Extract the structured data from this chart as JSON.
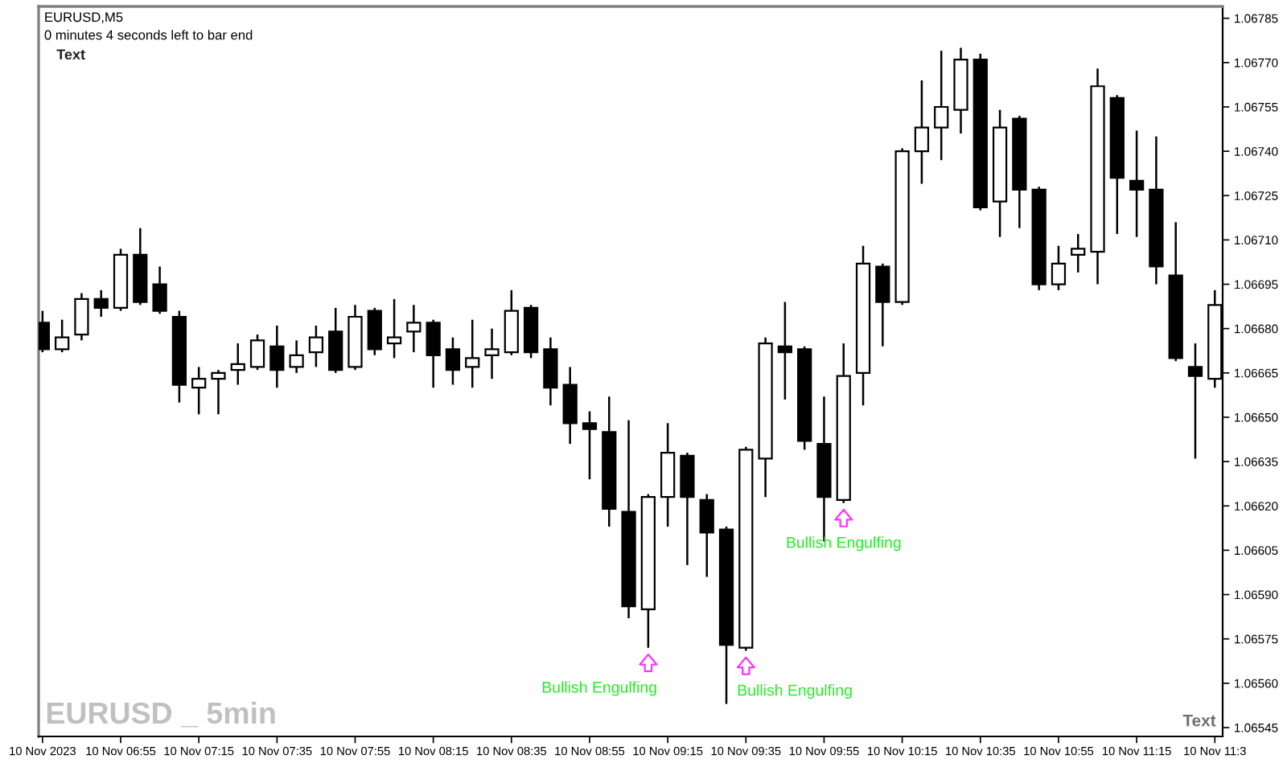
{
  "chart_data": {
    "type": "candlestick",
    "title": "EURUSD,M5",
    "subtitle": "0 minutes 4 seconds left to bar end",
    "x": [
      "2023-11-10T06:35",
      "2023-11-10T06:40",
      "2023-11-10T06:45",
      "2023-11-10T06:50",
      "2023-11-10T06:55",
      "2023-11-10T07:00",
      "2023-11-10T07:05",
      "2023-11-10T07:10",
      "2023-11-10T07:15",
      "2023-11-10T07:20",
      "2023-11-10T07:25",
      "2023-11-10T07:30",
      "2023-11-10T07:35",
      "2023-11-10T07:40",
      "2023-11-10T07:45",
      "2023-11-10T07:50",
      "2023-11-10T07:55",
      "2023-11-10T08:00",
      "2023-11-10T08:05",
      "2023-11-10T08:10",
      "2023-11-10T08:15",
      "2023-11-10T08:20",
      "2023-11-10T08:25",
      "2023-11-10T08:30",
      "2023-11-10T08:35",
      "2023-11-10T08:40",
      "2023-11-10T08:45",
      "2023-11-10T08:50",
      "2023-11-10T08:55",
      "2023-11-10T09:00",
      "2023-11-10T09:05",
      "2023-11-10T09:10",
      "2023-11-10T09:15",
      "2023-11-10T09:20",
      "2023-11-10T09:25",
      "2023-11-10T09:30",
      "2023-11-10T09:35",
      "2023-11-10T09:40",
      "2023-11-10T09:45",
      "2023-11-10T09:50",
      "2023-11-10T09:55",
      "2023-11-10T10:00",
      "2023-11-10T10:05",
      "2023-11-10T10:10",
      "2023-11-10T10:15",
      "2023-11-10T10:20",
      "2023-11-10T10:25",
      "2023-11-10T10:30",
      "2023-11-10T10:35",
      "2023-11-10T10:40",
      "2023-11-10T10:45",
      "2023-11-10T10:50",
      "2023-11-10T10:55",
      "2023-11-10T11:00",
      "2023-11-10T11:05",
      "2023-11-10T11:10",
      "2023-11-10T11:15",
      "2023-11-10T11:20",
      "2023-11-10T11:25",
      "2023-11-10T11:30",
      "2023-11-10T11:35"
    ],
    "ohlc": [
      [
        1.06682,
        1.06686,
        1.06672,
        1.06673
      ],
      [
        1.06673,
        1.06683,
        1.06672,
        1.06677
      ],
      [
        1.06678,
        1.06692,
        1.06676,
        1.0669
      ],
      [
        1.0669,
        1.06693,
        1.06684,
        1.06687
      ],
      [
        1.06687,
        1.06707,
        1.06686,
        1.06705
      ],
      [
        1.06705,
        1.06714,
        1.06688,
        1.06689
      ],
      [
        1.06695,
        1.06701,
        1.06685,
        1.06686
      ],
      [
        1.06684,
        1.06686,
        1.06655,
        1.06661
      ],
      [
        1.0666,
        1.06667,
        1.06651,
        1.06663
      ],
      [
        1.06663,
        1.06666,
        1.06651,
        1.06665
      ],
      [
        1.06666,
        1.06675,
        1.06661,
        1.06668
      ],
      [
        1.06667,
        1.06678,
        1.06666,
        1.06676
      ],
      [
        1.06674,
        1.06681,
        1.0666,
        1.06666
      ],
      [
        1.06667,
        1.06676,
        1.06665,
        1.06671
      ],
      [
        1.06672,
        1.06681,
        1.06667,
        1.06677
      ],
      [
        1.06679,
        1.06687,
        1.06665,
        1.06666
      ],
      [
        1.06667,
        1.06688,
        1.06666,
        1.06684
      ],
      [
        1.06686,
        1.06687,
        1.06671,
        1.06673
      ],
      [
        1.06675,
        1.0669,
        1.0667,
        1.06677
      ],
      [
        1.06679,
        1.06688,
        1.06672,
        1.06682
      ],
      [
        1.06682,
        1.06683,
        1.0666,
        1.06671
      ],
      [
        1.06673,
        1.06677,
        1.06661,
        1.06666
      ],
      [
        1.06667,
        1.06683,
        1.0666,
        1.0667
      ],
      [
        1.06671,
        1.0668,
        1.06663,
        1.06673
      ],
      [
        1.06672,
        1.06693,
        1.06671,
        1.06686
      ],
      [
        1.06687,
        1.06688,
        1.0667,
        1.06672
      ],
      [
        1.06673,
        1.06677,
        1.06654,
        1.0666
      ],
      [
        1.06661,
        1.06667,
        1.06641,
        1.06648
      ],
      [
        1.06648,
        1.06652,
        1.06629,
        1.06646
      ],
      [
        1.06645,
        1.06657,
        1.06613,
        1.06619
      ],
      [
        1.06618,
        1.06649,
        1.06582,
        1.06586
      ],
      [
        1.06585,
        1.06624,
        1.06572,
        1.06623
      ],
      [
        1.06623,
        1.06648,
        1.06613,
        1.06638
      ],
      [
        1.06637,
        1.06638,
        1.066,
        1.06623
      ],
      [
        1.06622,
        1.06624,
        1.06596,
        1.06611
      ],
      [
        1.06612,
        1.06613,
        1.06553,
        1.06573
      ],
      [
        1.06572,
        1.0664,
        1.06571,
        1.06639
      ],
      [
        1.06636,
        1.06677,
        1.06623,
        1.06675
      ],
      [
        1.06674,
        1.06689,
        1.06656,
        1.06672
      ],
      [
        1.06673,
        1.06674,
        1.06639,
        1.06642
      ],
      [
        1.06641,
        1.06657,
        1.06608,
        1.06623
      ],
      [
        1.06622,
        1.06675,
        1.06621,
        1.06664
      ],
      [
        1.06665,
        1.06708,
        1.06654,
        1.06702
      ],
      [
        1.06701,
        1.06702,
        1.06674,
        1.06689
      ],
      [
        1.06689,
        1.06741,
        1.06688,
        1.0674
      ],
      [
        1.0674,
        1.06764,
        1.06729,
        1.06748
      ],
      [
        1.06748,
        1.06774,
        1.06737,
        1.06755
      ],
      [
        1.06754,
        1.06775,
        1.06746,
        1.06771
      ],
      [
        1.06771,
        1.06773,
        1.0672,
        1.06721
      ],
      [
        1.06723,
        1.06754,
        1.06711,
        1.06748
      ],
      [
        1.06751,
        1.06752,
        1.06714,
        1.06727
      ],
      [
        1.06727,
        1.06728,
        1.06693,
        1.06695
      ],
      [
        1.06695,
        1.06708,
        1.06693,
        1.06702
      ],
      [
        1.06705,
        1.06712,
        1.06699,
        1.06707
      ],
      [
        1.06706,
        1.06768,
        1.06695,
        1.06762
      ],
      [
        1.06758,
        1.06759,
        1.06712,
        1.06731
      ],
      [
        1.0673,
        1.06747,
        1.06711,
        1.06727
      ],
      [
        1.06727,
        1.06745,
        1.06695,
        1.06701
      ],
      [
        1.06698,
        1.06716,
        1.06669,
        1.0667
      ],
      [
        1.06667,
        1.06675,
        1.06636,
        1.06664
      ],
      [
        1.06663,
        1.06693,
        1.0666,
        1.06688
      ]
    ],
    "xlim": [
      "2023-11-10T06:34",
      "2023-11-10T11:37"
    ],
    "xticks": [
      {
        "value": "2023-11-10T06:35",
        "label": "10 Nov 2023"
      },
      {
        "value": "2023-11-10T06:55",
        "label": "10 Nov 06:55"
      },
      {
        "value": "2023-11-10T07:15",
        "label": "10 Nov 07:15"
      },
      {
        "value": "2023-11-10T07:35",
        "label": "10 Nov 07:35"
      },
      {
        "value": "2023-11-10T07:55",
        "label": "10 Nov 07:55"
      },
      {
        "value": "2023-11-10T08:15",
        "label": "10 Nov 08:15"
      },
      {
        "value": "2023-11-10T08:35",
        "label": "10 Nov 08:35"
      },
      {
        "value": "2023-11-10T08:55",
        "label": "10 Nov 08:55"
      },
      {
        "value": "2023-11-10T09:15",
        "label": "10 Nov 09:15"
      },
      {
        "value": "2023-11-10T09:35",
        "label": "10 Nov 09:35"
      },
      {
        "value": "2023-11-10T09:55",
        "label": "10 Nov 09:55"
      },
      {
        "value": "2023-11-10T10:15",
        "label": "10 Nov 10:15"
      },
      {
        "value": "2023-11-10T10:35",
        "label": "10 Nov 10:35"
      },
      {
        "value": "2023-11-10T10:55",
        "label": "10 Nov 10:55"
      },
      {
        "value": "2023-11-10T11:15",
        "label": "10 Nov 11:15"
      },
      {
        "value": "2023-11-10T11:35",
        "label": "10 Nov 11:3"
      }
    ],
    "ylim": [
      1.06542,
      1.06789
    ],
    "yticks": [
      1.06545,
      {
        "value": 1.0656,
        "label": "1.06560"
      },
      1.06575,
      {
        "value": 1.0659,
        "label": "1.06590"
      },
      1.06605,
      {
        "value": 1.0662,
        "label": "1.06620"
      },
      1.06635,
      {
        "value": 1.0665,
        "label": "1.06650"
      },
      1.06665,
      {
        "value": 1.0668,
        "label": "1.06680"
      },
      1.06695,
      {
        "value": 1.0671,
        "label": "1.06710"
      },
      1.06725,
      {
        "value": 1.0674,
        "label": "1.06740"
      },
      1.06755,
      {
        "value": 1.0677,
        "label": "1.06770"
      },
      1.06785
    ],
    "annotations": [
      "Text",
      "EURUSD _ 5min",
      "Text",
      {
        "text": "Bullish Engulfing",
        "x": "2023-11-10T09:10",
        "y": 1.06572
      },
      {
        "text": "Bullish Engulfing",
        "x": "2023-11-10T09:35",
        "y": 1.06571
      },
      {
        "text": "Bullish Engulfing",
        "x": "2023-11-10T10:00",
        "y": 1.06621
      }
    ]
  }
}
